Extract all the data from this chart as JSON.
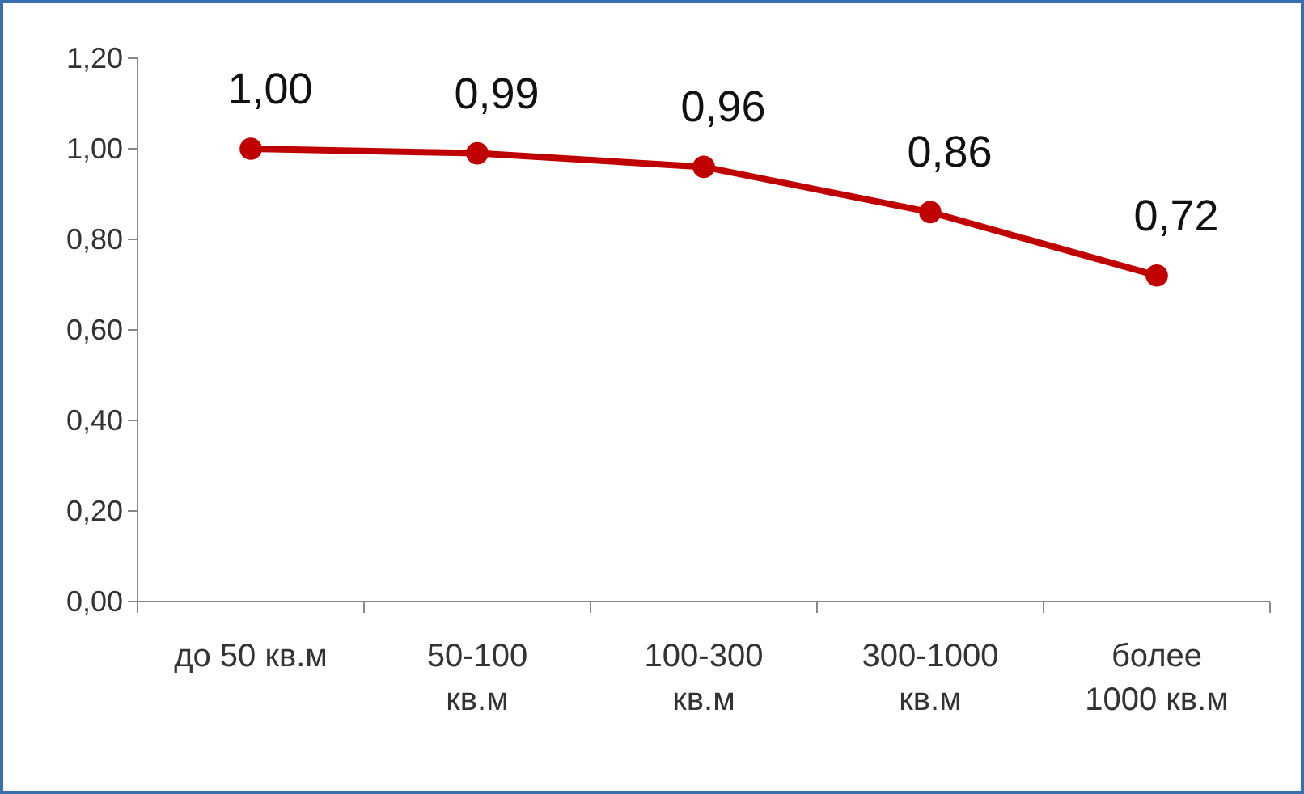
{
  "chart_data": {
    "type": "line",
    "categories": [
      "до 50 кв.м",
      "50-100 кв.м",
      "100-300 кв.м",
      "300-1000 кв.м",
      "более 1000 кв.м"
    ],
    "series": [
      {
        "color": "#c00000",
        "values": [
          1.0,
          0.99,
          0.96,
          0.86,
          0.72
        ],
        "value_labels": [
          "1,00",
          "0,99",
          "0,96",
          "0,86",
          "0,72"
        ]
      }
    ],
    "ylim": [
      0,
      1.2
    ],
    "yticks": [
      {
        "value": 0,
        "label": "0,00"
      },
      {
        "value": 0.2,
        "label": "0,20"
      },
      {
        "value": 0.4,
        "label": "0,40"
      },
      {
        "value": 0.6,
        "label": "0,60"
      },
      {
        "value": 0.8,
        "label": "0,80"
      },
      {
        "value": 1.0,
        "label": "1,00"
      },
      {
        "value": 1.2,
        "label": "1,20"
      }
    ],
    "grid": false,
    "marker": "circle",
    "line_style": "solid"
  }
}
